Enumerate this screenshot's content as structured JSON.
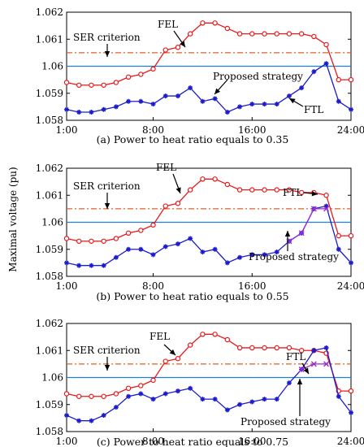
{
  "figure": {
    "ylabel": "Maximal voltage (pu)",
    "colors": {
      "fel": "#e8191b",
      "ftl": "#1c1ccc",
      "ser": "#e35e22",
      "ref": "#1f7fd1",
      "proposed": "#9b2fd6"
    }
  },
  "chart_data": [
    {
      "type": "line",
      "title": "(a) Power to heat ratio equals to 0.35",
      "xlabel": "",
      "ylabel": "Maximal voltage (pu)",
      "x_ticks": [
        "1:00",
        "8:00",
        "16:00",
        "24:00"
      ],
      "xlim": [
        1,
        24
      ],
      "ylim": [
        1.058,
        1.062
      ],
      "y_ticks": [
        "1.058",
        "1.059",
        "1.06",
        "1.061",
        "1.062"
      ],
      "x": [
        1,
        2,
        3,
        4,
        5,
        6,
        7,
        8,
        9,
        10,
        11,
        12,
        13,
        14,
        15,
        16,
        17,
        18,
        19,
        20,
        21,
        22,
        23,
        24
      ],
      "series": [
        {
          "name": "FEL",
          "color": "#e8191b",
          "marker": "circle",
          "values": [
            1.0594,
            1.0593,
            1.0593,
            1.0593,
            1.0594,
            1.0596,
            1.0597,
            1.0599,
            1.0606,
            1.0607,
            1.0612,
            1.0616,
            1.0616,
            1.0614,
            1.0612,
            1.0612,
            1.0612,
            1.0612,
            1.0612,
            1.0612,
            1.0611,
            1.0608,
            1.0595,
            1.0595
          ]
        },
        {
          "name": "FTL",
          "color": "#1c1ccc",
          "marker": "star",
          "values": [
            1.0584,
            1.0583,
            1.0583,
            1.0584,
            1.0585,
            1.0587,
            1.0587,
            1.0586,
            1.0589,
            1.0589,
            1.0592,
            1.0587,
            1.0588,
            1.0583,
            1.0585,
            1.0586,
            1.0586,
            1.0586,
            1.0589,
            1.0592,
            1.0598,
            1.0601,
            1.0587,
            1.0584
          ]
        }
      ],
      "ser_criterion": 1.0605,
      "reference_line": 1.06,
      "annotations": [
        "FEL",
        "SER criterion",
        "Proposed strategy",
        "FTL"
      ]
    },
    {
      "type": "line",
      "title": "(b) Power to heat ratio equals to 0.55",
      "xlabel": "",
      "ylabel": "Maximal voltage (pu)",
      "x_ticks": [
        "1:00",
        "8:00",
        "16:00",
        "24:00"
      ],
      "xlim": [
        1,
        24
      ],
      "ylim": [
        1.058,
        1.062
      ],
      "y_ticks": [
        "1.058",
        "1.059",
        "1.06",
        "1.061",
        "1.062"
      ],
      "x": [
        1,
        2,
        3,
        4,
        5,
        6,
        7,
        8,
        9,
        10,
        11,
        12,
        13,
        14,
        15,
        16,
        17,
        18,
        19,
        20,
        21,
        22,
        23,
        24
      ],
      "series": [
        {
          "name": "FEL",
          "color": "#e8191b",
          "marker": "circle",
          "values": [
            1.0594,
            1.0593,
            1.0593,
            1.0593,
            1.0594,
            1.0596,
            1.0597,
            1.0599,
            1.0606,
            1.0607,
            1.0612,
            1.0616,
            1.0616,
            1.0614,
            1.0612,
            1.0612,
            1.0612,
            1.0612,
            1.0612,
            1.0611,
            1.0611,
            1.061,
            1.0595,
            1.0595
          ]
        },
        {
          "name": "FTL",
          "color": "#1c1ccc",
          "marker": "star",
          "values": [
            1.0585,
            1.0584,
            1.0584,
            1.0584,
            1.0587,
            1.059,
            1.059,
            1.0588,
            1.0591,
            1.0592,
            1.0594,
            1.0589,
            1.059,
            1.0585,
            1.0587,
            1.0588,
            1.0588,
            1.0589,
            1.0593,
            1.0596,
            1.0605,
            1.0606,
            1.059,
            1.0585
          ]
        },
        {
          "name": "Proposed strategy",
          "color": "#9b2fd6",
          "marker": "x",
          "x_values": [
            19,
            20,
            21,
            22
          ],
          "values": [
            1.0593,
            1.0596,
            1.0605,
            1.0605
          ]
        }
      ],
      "ser_criterion": 1.0605,
      "reference_line": 1.06,
      "annotations": [
        "FEL",
        "SER criterion",
        "FTL",
        "Proposed strategy"
      ]
    },
    {
      "type": "line",
      "title": "(c) Power to heat ratio equals to 0.75",
      "xlabel": "",
      "ylabel": "Maximal voltage (pu)",
      "x_ticks": [
        "1:00",
        "8:00",
        "16:00",
        "24:00"
      ],
      "xlim": [
        1,
        24
      ],
      "ylim": [
        1.058,
        1.062
      ],
      "y_ticks": [
        "1.058",
        "1.059",
        "1.06",
        "1.061",
        "1.062"
      ],
      "x": [
        1,
        2,
        3,
        4,
        5,
        6,
        7,
        8,
        9,
        10,
        11,
        12,
        13,
        14,
        15,
        16,
        17,
        18,
        19,
        20,
        21,
        22,
        23,
        24
      ],
      "series": [
        {
          "name": "FEL",
          "color": "#e8191b",
          "marker": "circle",
          "values": [
            1.0594,
            1.0593,
            1.0593,
            1.0593,
            1.0594,
            1.0596,
            1.0597,
            1.0599,
            1.0606,
            1.0607,
            1.0612,
            1.0616,
            1.0616,
            1.0614,
            1.0611,
            1.0611,
            1.0611,
            1.0611,
            1.0611,
            1.061,
            1.061,
            1.0609,
            1.0595,
            1.0595
          ]
        },
        {
          "name": "FTL",
          "color": "#1c1ccc",
          "marker": "star",
          "values": [
            1.0586,
            1.0584,
            1.0584,
            1.0586,
            1.0589,
            1.0593,
            1.0594,
            1.0592,
            1.0594,
            1.0595,
            1.0596,
            1.0592,
            1.0592,
            1.0588,
            1.059,
            1.0591,
            1.0592,
            1.0592,
            1.0598,
            1.0603,
            1.061,
            1.0611,
            1.0593,
            1.0587
          ]
        },
        {
          "name": "Proposed strategy",
          "color": "#9b2fd6",
          "marker": "x",
          "x_values": [
            20,
            21,
            22
          ],
          "values": [
            1.0603,
            1.0605,
            1.0605
          ]
        }
      ],
      "ser_criterion": 1.0605,
      "reference_line": 1.06,
      "annotations": [
        "FEL",
        "SER criterion",
        "FTL",
        "Proposed strategy"
      ]
    }
  ]
}
